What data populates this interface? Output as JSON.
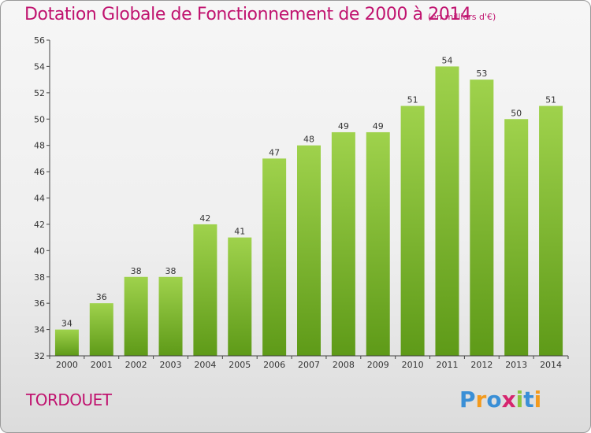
{
  "header": {
    "title": "Dotation Globale de Fonctionnement de 2000 à 2014",
    "unit": "(en milliers d'€)"
  },
  "footer": {
    "commune": "TORDOUET",
    "brand": "Proxiti"
  },
  "colors": {
    "title": "#c0136f",
    "bar_light": "#9fd24c",
    "bar_dark": "#5e9a18",
    "axis": "#444444"
  },
  "chart_data": {
    "type": "bar",
    "title": "Dotation Globale de Fonctionnement de 2000 à 2014",
    "subtitle": "(en milliers d'€)",
    "xlabel": "",
    "ylabel": "",
    "categories": [
      "2000",
      "2001",
      "2002",
      "2003",
      "2004",
      "2005",
      "2006",
      "2007",
      "2008",
      "2009",
      "2010",
      "2011",
      "2012",
      "2013",
      "2014"
    ],
    "values": [
      34,
      36,
      38,
      38,
      42,
      41,
      47,
      48,
      49,
      49,
      51,
      54,
      53,
      50,
      51
    ],
    "ylim": [
      32,
      56
    ],
    "yticks": [
      32,
      34,
      36,
      38,
      40,
      42,
      44,
      46,
      48,
      50,
      52,
      54,
      56
    ],
    "grid": false,
    "legend": "none",
    "data_labels": true
  }
}
